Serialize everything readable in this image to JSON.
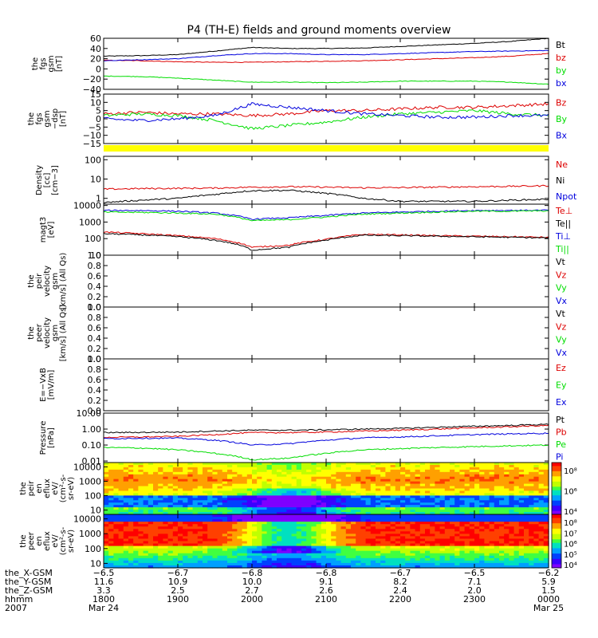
{
  "title": "P4 (TH-E) fields and ground moments overview",
  "colors": {
    "black": "#000000",
    "red": "#dd0000",
    "green": "#00dd00",
    "blue": "#0000dd",
    "yellow": "#ffff00"
  },
  "chart_data": [
    {
      "type": "line",
      "ylabel": [
        "the",
        "fgs",
        "gsm",
        "[nT]"
      ],
      "ylim": [
        -40,
        60
      ],
      "yticks": [
        "60",
        "40",
        "20",
        "0",
        "−20",
        "−40"
      ],
      "legend": [
        "Bt",
        "bz",
        "by",
        "bx"
      ],
      "legend_colors": [
        "#000000",
        "#dd0000",
        "#00dd00",
        "#0000dd"
      ],
      "x_hours": [
        18.0,
        18.5,
        19.0,
        19.5,
        20.0,
        20.5,
        21.0,
        21.5,
        22.0,
        22.5,
        23.0,
        23.5,
        24.0
      ],
      "series": [
        {
          "name": "Bt",
          "color": "#000000",
          "values": [
            25,
            26,
            28,
            35,
            42,
            40,
            40,
            41,
            44,
            47,
            50,
            54,
            60
          ]
        },
        {
          "name": "bz",
          "color": "#dd0000",
          "values": [
            17,
            16,
            14,
            13,
            13,
            14,
            15,
            16,
            18,
            20,
            22,
            25,
            30
          ]
        },
        {
          "name": "by",
          "color": "#00dd00",
          "values": [
            -14,
            -15,
            -18,
            -22,
            -26,
            -26,
            -27,
            -26,
            -24,
            -24,
            -24,
            -26,
            -30
          ]
        },
        {
          "name": "bx",
          "color": "#0000dd",
          "values": [
            16,
            18,
            20,
            26,
            30,
            30,
            28,
            28,
            30,
            32,
            34,
            35,
            36
          ]
        }
      ]
    },
    {
      "type": "line",
      "ylabel": [
        "the",
        "fgs",
        "gsm",
        "−dsp",
        "[nT]"
      ],
      "ylim": [
        -15,
        15
      ],
      "yticks": [
        "15",
        "10",
        "5",
        "0",
        "−5",
        "−10",
        "−15"
      ],
      "legend": [
        "Bz",
        "By",
        "Bx"
      ],
      "legend_colors": [
        "#dd0000",
        "#00dd00",
        "#0000dd"
      ],
      "x_hours": [
        18.0,
        18.5,
        19.0,
        19.5,
        20.0,
        20.5,
        21.0,
        21.5,
        22.0,
        22.5,
        23.0,
        23.5,
        24.0
      ],
      "series": [
        {
          "name": "Bz",
          "color": "#dd0000",
          "values": [
            3,
            4,
            3,
            3,
            2,
            3,
            5,
            5,
            6,
            7,
            7,
            8,
            9
          ]
        },
        {
          "name": "By",
          "color": "#00dd00",
          "values": [
            2,
            3,
            2,
            -1,
            -6,
            -4,
            -2,
            1,
            3,
            4,
            5,
            3,
            2
          ]
        },
        {
          "name": "Bx",
          "color": "#0000dd",
          "values": [
            0,
            -1,
            0,
            2,
            9,
            7,
            5,
            3,
            2,
            1,
            1,
            2,
            2
          ]
        }
      ]
    },
    {
      "type": "line",
      "ylabel": [
        "Density",
        "[cc]",
        "[cm−3]"
      ],
      "yscale": "log",
      "ylim": [
        0.5,
        150
      ],
      "yticks": [
        "100",
        "10",
        "1"
      ],
      "legend": [
        "Ne",
        "Ni",
        "Npot"
      ],
      "legend_colors": [
        "#dd0000",
        "#000000",
        "#0000dd"
      ],
      "x_hours": [
        18.0,
        18.5,
        19.0,
        19.5,
        20.0,
        20.5,
        21.0,
        21.5,
        22.0,
        22.5,
        23.0,
        23.5,
        24.0
      ],
      "series": [
        {
          "name": "Ne",
          "color": "#dd0000",
          "values": [
            3.0,
            3.2,
            3.3,
            3.4,
            3.8,
            4.0,
            3.8,
            3.5,
            3.6,
            3.8,
            4.0,
            4.2,
            4.5
          ]
        },
        {
          "name": "Ni",
          "color": "#000000",
          "values": [
            0.6,
            0.8,
            1.0,
            1.6,
            2.5,
            2.6,
            1.8,
            1.0,
            0.7,
            0.7,
            0.7,
            0.8,
            0.9
          ]
        }
      ]
    },
    {
      "type": "line",
      "ylabel": [
        "magt3",
        "[eV]"
      ],
      "yscale": "log",
      "ylim": [
        10,
        12000
      ],
      "yticks": [
        "10000",
        "1000",
        "100",
        "10"
      ],
      "legend": [
        "Te⊥",
        "Te||",
        "Ti⊥",
        "Ti||"
      ],
      "legend_colors": [
        "#dd0000",
        "#000000",
        "#0000dd",
        "#00dd00"
      ],
      "x_hours": [
        18.0,
        18.5,
        19.0,
        19.5,
        20.0,
        20.5,
        21.0,
        21.5,
        22.0,
        22.5,
        23.0,
        23.5,
        24.0
      ],
      "series": [
        {
          "name": "Te⊥",
          "color": "#dd0000",
          "values": [
            250,
            200,
            150,
            100,
            30,
            40,
            90,
            180,
            170,
            150,
            140,
            130,
            120
          ]
        },
        {
          "name": "Te||",
          "color": "#000000",
          "values": [
            200,
            170,
            130,
            80,
            20,
            30,
            80,
            160,
            150,
            140,
            130,
            120,
            110
          ]
        },
        {
          "name": "Ti⊥",
          "color": "#0000dd",
          "values": [
            5000,
            5000,
            4500,
            3500,
            1500,
            1800,
            2500,
            3500,
            4000,
            4500,
            5000,
            5000,
            5200
          ]
        },
        {
          "name": "Ti||",
          "color": "#00dd00",
          "values": [
            4000,
            3800,
            3500,
            3000,
            1200,
            1400,
            2000,
            3000,
            3500,
            4000,
            4500,
            4500,
            4800
          ]
        }
      ]
    },
    {
      "type": "line",
      "ylabel": [
        "the",
        "peir",
        "velocity",
        "gsm",
        "[km/s] (All Qs)"
      ],
      "ylim": [
        0,
        1
      ],
      "yticks": [
        "1.0",
        "0.8",
        "0.6",
        "0.4",
        "0.2",
        "0.0"
      ],
      "legend": [
        "Vt",
        "Vz",
        "Vy",
        "Vx"
      ],
      "legend_colors": [
        "#000000",
        "#dd0000",
        "#00dd00",
        "#0000dd"
      ],
      "series": []
    },
    {
      "type": "line",
      "ylabel": [
        "the",
        "peer",
        "velocity",
        "gsm",
        "[km/s] (All Qs)"
      ],
      "ylim": [
        0,
        1
      ],
      "yticks": [
        "1.0",
        "0.8",
        "0.6",
        "0.4",
        "0.2",
        "0.0"
      ],
      "legend": [
        "Vt",
        "Vz",
        "Vy",
        "Vx"
      ],
      "legend_colors": [
        "#000000",
        "#dd0000",
        "#00dd00",
        "#0000dd"
      ],
      "series": []
    },
    {
      "type": "line",
      "ylabel": [
        "E=−VxB",
        "[mV/m]"
      ],
      "ylim": [
        0,
        1
      ],
      "yticks": [
        "1.0",
        "0.8",
        "0.6",
        "0.4",
        "0.2",
        "0.0"
      ],
      "legend": [
        "Ez",
        "Ey",
        "Ex"
      ],
      "legend_colors": [
        "#dd0000",
        "#00dd00",
        "#0000dd"
      ],
      "series": []
    },
    {
      "type": "line",
      "ylabel": [
        "Pressure",
        "[nPa]"
      ],
      "yscale": "log",
      "ylim": [
        0.008,
        10
      ],
      "yticks": [
        "10.00",
        "1.00",
        "0.10",
        "0.01"
      ],
      "legend": [
        "Pt",
        "Pb",
        "Pe",
        "Pi"
      ],
      "legend_colors": [
        "#000000",
        "#dd0000",
        "#00dd00",
        "#0000dd"
      ],
      "x_hours": [
        18.0,
        18.5,
        19.0,
        19.5,
        20.0,
        20.5,
        21.0,
        21.5,
        22.0,
        22.5,
        23.0,
        23.5,
        24.0
      ],
      "series": [
        {
          "name": "Pt",
          "color": "#000000",
          "values": [
            0.6,
            0.62,
            0.65,
            0.75,
            0.85,
            0.85,
            0.9,
            1.0,
            1.1,
            1.3,
            1.5,
            1.7,
            2.0
          ]
        },
        {
          "name": "Pb",
          "color": "#dd0000",
          "values": [
            0.3,
            0.32,
            0.35,
            0.45,
            0.6,
            0.6,
            0.65,
            0.75,
            0.85,
            1.0,
            1.2,
            1.4,
            1.7
          ]
        },
        {
          "name": "Pe",
          "color": "#00dd00",
          "values": [
            0.07,
            0.065,
            0.05,
            0.03,
            0.012,
            0.015,
            0.03,
            0.05,
            0.06,
            0.07,
            0.08,
            0.09,
            0.1
          ]
        },
        {
          "name": "Pi",
          "color": "#0000dd",
          "values": [
            0.25,
            0.27,
            0.27,
            0.2,
            0.1,
            0.12,
            0.2,
            0.28,
            0.32,
            0.38,
            0.45,
            0.5,
            0.55
          ]
        }
      ]
    },
    {
      "type": "heatmap",
      "ylabel": [
        "the",
        "peir",
        "en",
        "eflux",
        "eV/",
        "(cm²-s-",
        "sr-eV)"
      ],
      "yscale": "log",
      "ylim": [
        5,
        20000
      ],
      "yticks": [
        "10000",
        "1000",
        "100",
        "10"
      ],
      "colorbar_ticks": [
        "10⁸",
        "10⁶",
        "10⁴"
      ]
    },
    {
      "type": "heatmap",
      "ylabel": [
        "the",
        "peer",
        "en",
        "eflux",
        "eV/",
        "(cm²-s-",
        "sr-eV)"
      ],
      "yscale": "log",
      "ylim": [
        5,
        20000
      ],
      "yticks": [
        "10000",
        "1000",
        "100",
        "10"
      ],
      "colorbar_ticks": [
        "10⁸",
        "10⁷",
        "10⁶",
        "10⁵",
        "10⁴"
      ]
    }
  ],
  "xaxis": {
    "row_labels": [
      "the_X-GSM",
      "the_Y-GSM",
      "the_Z-GSM",
      "hhmm",
      "2007"
    ],
    "columns": [
      {
        "x": "−6.5",
        "y": "11.6",
        "z": "3.3",
        "hhmm": "1800",
        "date": "Mar 24"
      },
      {
        "x": "−6.7",
        "y": "10.9",
        "z": "2.5",
        "hhmm": "1900",
        "date": ""
      },
      {
        "x": "−6.8",
        "y": "10.0",
        "z": "2.7",
        "hhmm": "2000",
        "date": ""
      },
      {
        "x": "−6.8",
        "y": "9.1",
        "z": "2.6",
        "hhmm": "2100",
        "date": ""
      },
      {
        "x": "−6.7",
        "y": "8.2",
        "z": "2.4",
        "hhmm": "2200",
        "date": ""
      },
      {
        "x": "−6.5",
        "y": "7.1",
        "z": "2.0",
        "hhmm": "2300",
        "date": ""
      },
      {
        "x": "−6.2",
        "y": "5.9",
        "z": "1.5",
        "hhmm": "0000",
        "date": "Mar 25"
      }
    ]
  }
}
